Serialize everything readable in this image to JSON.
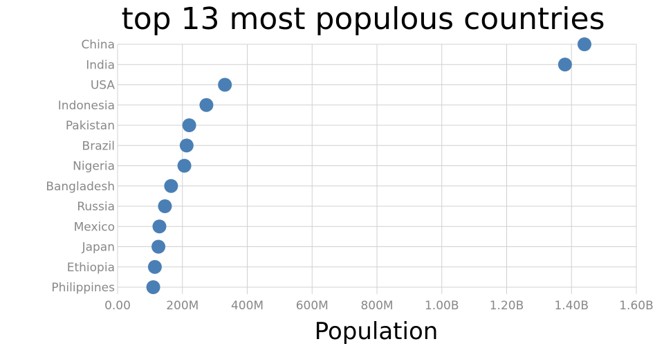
{
  "chart_data": {
    "type": "scatter",
    "title": "top 13 most populous countries",
    "xlabel": "Population",
    "ylabel": "",
    "xlim": [
      0,
      1600000000
    ],
    "x_ticks": [
      {
        "value": 0,
        "label": "0.00"
      },
      {
        "value": 200000000,
        "label": "200M"
      },
      {
        "value": 400000000,
        "label": "400M"
      },
      {
        "value": 600000000,
        "label": "600M"
      },
      {
        "value": 800000000,
        "label": "800M"
      },
      {
        "value": 1000000000,
        "label": "1.00B"
      },
      {
        "value": 1200000000,
        "label": "1.20B"
      },
      {
        "value": 1400000000,
        "label": "1.40B"
      },
      {
        "value": 1600000000,
        "label": "1.60B"
      }
    ],
    "categories": [
      "China",
      "India",
      "USA",
      "Indonesia",
      "Pakistan",
      "Brazil",
      "Nigeria",
      "Bangladesh",
      "Russia",
      "Mexico",
      "Japan",
      "Ethiopia",
      "Philippines"
    ],
    "values": [
      1440000000,
      1380000000,
      331000000,
      274000000,
      221000000,
      213000000,
      206000000,
      165000000,
      146000000,
      129000000,
      126000000,
      115000000,
      110000000
    ],
    "marker_color": "#4a7fb5",
    "grid_color": "#d0d0d0",
    "tick_color": "#888888",
    "grid": true,
    "legend": false
  }
}
